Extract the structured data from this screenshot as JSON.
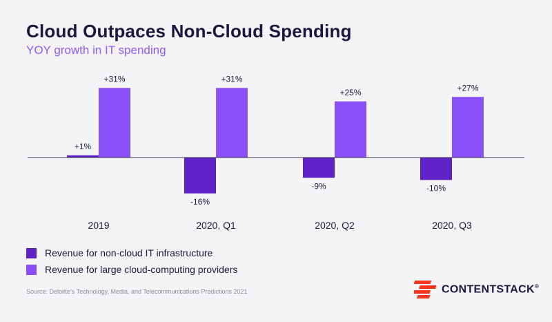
{
  "title": "Cloud Outpaces Non-Cloud Spending",
  "subtitle": "YOY growth in IT spending",
  "source": "Source: Deloitte's Technology, Media, and Telecommunications Predictions 2021",
  "logo": {
    "text": "CONTENTSTACK",
    "mark": "®",
    "color": "#f5351e"
  },
  "colors": {
    "non_cloud": "#5e22c6",
    "cloud": "#8a4ff7",
    "axis": "#3a3a4a",
    "text": "#1c1640"
  },
  "chart_data": {
    "type": "bar",
    "categories": [
      "2019",
      "2020, Q1",
      "2020, Q2",
      "2020, Q3"
    ],
    "series": [
      {
        "name": "Revenue for non-cloud IT infrastructure",
        "values": [
          1,
          -16,
          -9,
          -10
        ],
        "labels": [
          "+1%",
          "-16%",
          "-9%",
          "-10%"
        ],
        "color": "#5e22c6"
      },
      {
        "name": "Revenue for large cloud-computing providers",
        "values": [
          31,
          31,
          25,
          27
        ],
        "labels": [
          "+31%",
          "+31%",
          "+25%",
          "+27%"
        ],
        "color": "#8a4ff7"
      }
    ],
    "ylim": [
      -16,
      31
    ],
    "grid": false,
    "legend": "bottom-left"
  }
}
